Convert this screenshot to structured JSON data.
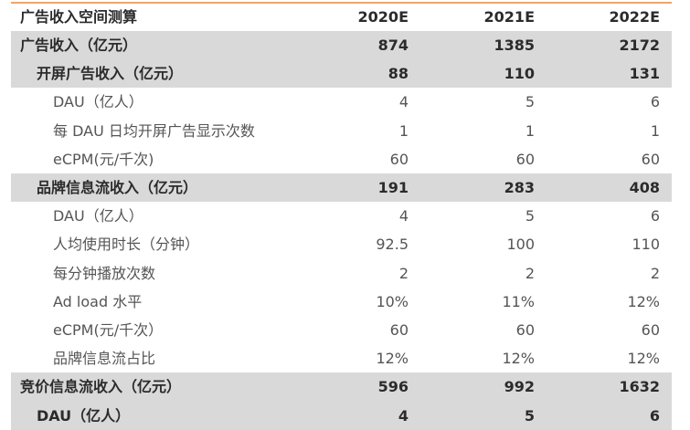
{
  "header": {
    "title": "广告收入空间测算",
    "columns": [
      "2020E",
      "2021E",
      "2022E"
    ]
  },
  "rows": [
    {
      "label": "广告收入（亿元）",
      "values": [
        "874",
        "1385",
        "2172"
      ],
      "children": [
        {
          "label": "开屏广告收入（亿元）",
          "values": [
            "88",
            "110",
            "131"
          ],
          "children": [
            {
              "label": "DAU（亿人）",
              "values": [
                "4",
                "5",
                "6"
              ]
            },
            {
              "label": "每 DAU 日均开屏广告显示次数",
              "values": [
                "1",
                "1",
                "1"
              ]
            },
            {
              "label": "eCPM(元/千次)",
              "values": [
                "60",
                "60",
                "60"
              ]
            }
          ]
        },
        {
          "label": "品牌信息流收入（亿元）",
          "values": [
            "191",
            "283",
            "408"
          ],
          "children": [
            {
              "label": "DAU（亿人）",
              "values": [
                "4",
                "5",
                "6"
              ]
            },
            {
              "label": "人均使用时长（分钟）",
              "values": [
                "92.5",
                "100",
                "110"
              ]
            },
            {
              "label": "每分钟播放次数",
              "values": [
                "2",
                "2",
                "2"
              ]
            },
            {
              "label": "Ad load 水平",
              "values": [
                "10%",
                "11%",
                "12%"
              ]
            },
            {
              "label": "eCPM(元/千次）",
              "values": [
                "60",
                "60",
                "60"
              ]
            },
            {
              "label": "品牌信息流占比",
              "values": [
                "12%",
                "12%",
                "12%"
              ]
            }
          ]
        }
      ]
    },
    {
      "label": "竞价信息流收入（亿元）",
      "values": [
        "596",
        "992",
        "1632"
      ],
      "children": [
        {
          "label": "DAU（亿人）",
          "values": [
            "4",
            "5",
            "6"
          ]
        }
      ]
    }
  ]
}
